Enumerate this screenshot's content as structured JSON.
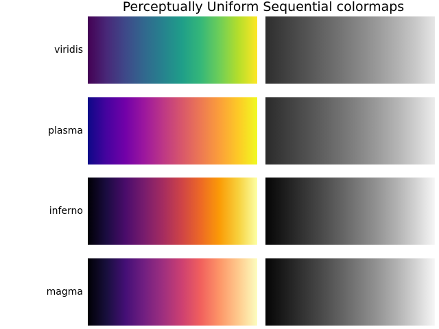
{
  "figure": {
    "title": "Perceptually Uniform Sequential colormaps"
  },
  "colormaps": [
    {
      "name": "viridis",
      "stops": [
        "#440154",
        "#482878",
        "#3e4989",
        "#31688e",
        "#26828e",
        "#1f9e89",
        "#35b779",
        "#6ece58",
        "#b5de2b",
        "#fde725"
      ],
      "gray_stops": [
        "#2e2e2e",
        "#3f3f3f",
        "#505050",
        "#626262",
        "#747474",
        "#878787",
        "#9b9b9b",
        "#b1b1b1",
        "#c9c9c9",
        "#e6e6e6"
      ]
    },
    {
      "name": "plasma",
      "stops": [
        "#0d0887",
        "#46039f",
        "#7201a8",
        "#9c179e",
        "#bd3786",
        "#d8576b",
        "#ed7953",
        "#fb9f3a",
        "#fdca26",
        "#f0f921"
      ],
      "gray_stops": [
        "#2a2a2a",
        "#3c3c3c",
        "#4d4d4d",
        "#5f5f5f",
        "#727272",
        "#868686",
        "#9c9c9c",
        "#b4b4b4",
        "#cfcfcf",
        "#ececec"
      ]
    },
    {
      "name": "inferno",
      "stops": [
        "#000004",
        "#1b0c41",
        "#4a0c6b",
        "#781c6d",
        "#a52c60",
        "#cf4446",
        "#ed6925",
        "#fb9b06",
        "#f7d13d",
        "#fcffa4"
      ],
      "gray_stops": [
        "#050505",
        "#1c1c1c",
        "#333333",
        "#4a4a4a",
        "#626262",
        "#7b7b7b",
        "#959595",
        "#b2b2b2",
        "#d3d3d3",
        "#f6f6f6"
      ]
    },
    {
      "name": "magma",
      "stops": [
        "#000004",
        "#180f3d",
        "#440f76",
        "#721f81",
        "#9e2f7f",
        "#cd4071",
        "#f1605d",
        "#fd9668",
        "#feca8d",
        "#fcfdbf"
      ],
      "gray_stops": [
        "#050505",
        "#1c1c1c",
        "#333333",
        "#4a4a4a",
        "#626262",
        "#7b7b7b",
        "#959595",
        "#b2b2b2",
        "#d3d3d3",
        "#f6f6f6"
      ]
    }
  ]
}
